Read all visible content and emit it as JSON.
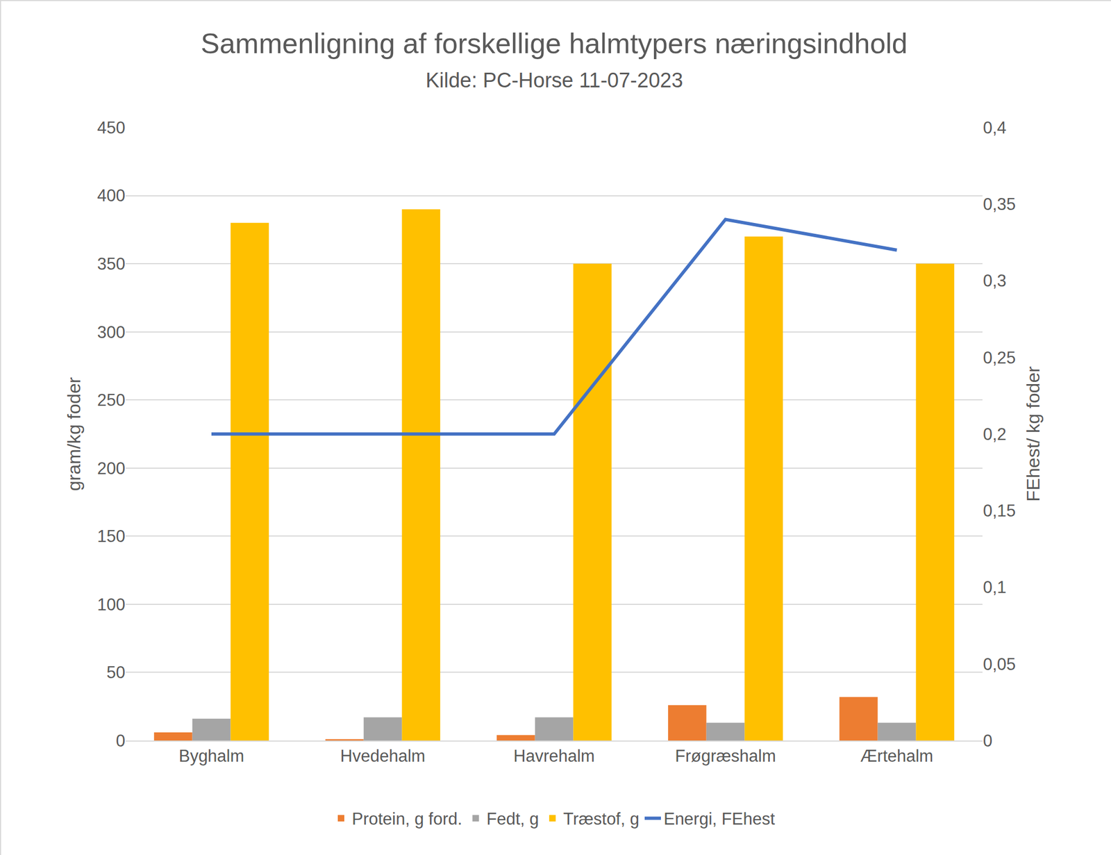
{
  "chart_data": {
    "type": "bar",
    "title": "Sammenligning af forskellige halmtypers næringsindhold",
    "subtitle": "Kilde: PC-Horse 11-07-2023",
    "y_label": "gram/kg foder",
    "y2_label": "FEhest/ kg foder",
    "categories": [
      "Byghalm",
      "Hvedehalm",
      "Havrehalm",
      "Frøgræshalm",
      "Ærtehalm"
    ],
    "series": [
      {
        "name": "Protein, g ford.",
        "type": "bar",
        "color": "#ED7D31",
        "values": [
          6,
          1,
          4,
          26,
          32
        ]
      },
      {
        "name": "Fedt, g",
        "type": "bar",
        "color": "#A5A5A5",
        "values": [
          16,
          17,
          17,
          13,
          13
        ]
      },
      {
        "name": "Træstof, g",
        "type": "bar",
        "color": "#FFC000",
        "values": [
          380,
          390,
          350,
          370,
          350
        ]
      },
      {
        "name": "Energi, FEhest",
        "type": "line",
        "axis": "y2",
        "color": "#4472C4",
        "values": [
          0.2,
          0.2,
          0.2,
          0.34,
          0.32
        ]
      }
    ],
    "ylim": [
      0,
      450
    ],
    "yticks": [
      0,
      50,
      100,
      150,
      200,
      250,
      300,
      350,
      400,
      450
    ],
    "y2lim": [
      0,
      0.4
    ],
    "y2ticks": [
      0,
      {
        "value": 0.05,
        "label": "0,05"
      },
      {
        "value": 0.1,
        "label": "0,1"
      },
      {
        "value": 0.15,
        "label": "0,15"
      },
      {
        "value": 0.2,
        "label": "0,2"
      },
      {
        "value": 0.25,
        "label": "0,25"
      },
      {
        "value": 0.3,
        "label": "0,3"
      },
      {
        "value": 0.35,
        "label": "0,35"
      },
      {
        "value": 0.4,
        "label": "0,4"
      }
    ],
    "grid": true,
    "legend": "bottom"
  }
}
